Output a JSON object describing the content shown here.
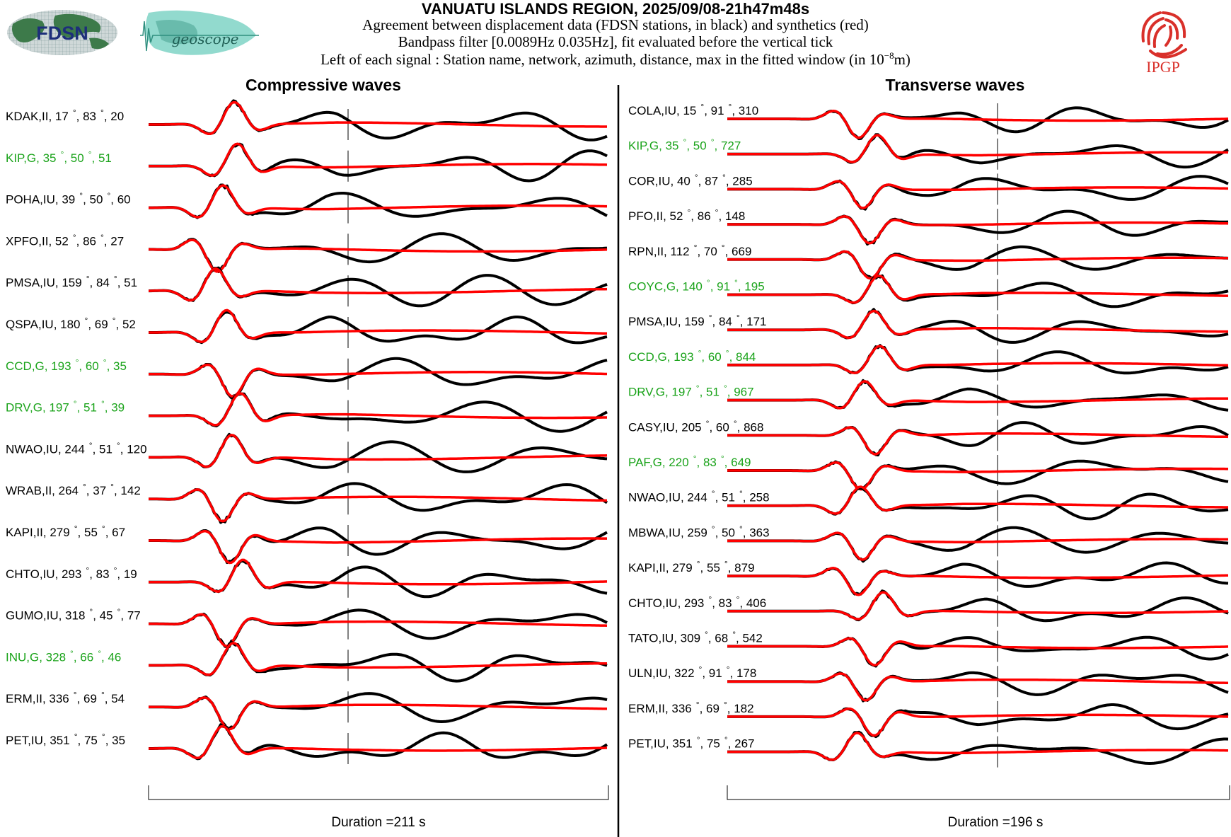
{
  "header": {
    "title": "VANUATU ISLANDS REGION, 2025/09/08-21h47m48s",
    "line1": "Agreement between displacement data (FDSN stations, in black) and synthetics (red)",
    "line2": "Bandpass filter [0.0089Hz 0.035Hz], fit evaluated before the vertical tick",
    "line3_prefix": "Left of each signal : Station name, network, azimuth, distance, max in the fitted window (in 10",
    "line3_exp": "−8",
    "line3_suffix": "m)"
  },
  "logos": {
    "fdsn": "FDSN",
    "geoscope": "geoscope",
    "ipgp": "IPGP"
  },
  "colors": {
    "data": "#000000",
    "synthetic": "#ff0000",
    "green_station": "#1aa31a",
    "ipgp": "#d9302a"
  },
  "chart_data": [
    {
      "type": "line",
      "title": "Compressive waves",
      "duration_label": "Duration =211 s",
      "series": [
        {
          "label": [
            "KDAK,II, 17",
            "°",
            ", 83",
            "°",
            ", 20"
          ],
          "green": false
        },
        {
          "label": [
            "KIP,G, 35",
            "°",
            ", 50",
            "°",
            ", 51"
          ],
          "green": true
        },
        {
          "label": [
            "POHA,IU, 39",
            "°",
            ", 50",
            "°",
            ", 60"
          ],
          "green": false
        },
        {
          "label": [
            "XPFO,II, 52",
            "°",
            ", 86",
            "°",
            ", 27"
          ],
          "green": false
        },
        {
          "label": [
            "PMSA,IU, 159",
            "°",
            ", 84",
            "°",
            ", 51"
          ],
          "green": false
        },
        {
          "label": [
            "QSPA,IU, 180",
            "°",
            ", 69",
            "°",
            ", 52"
          ],
          "green": false
        },
        {
          "label": [
            "CCD,G, 193",
            "°",
            ", 60",
            "°",
            ", 35"
          ],
          "green": true
        },
        {
          "label": [
            "DRV,G, 197",
            "°",
            ", 51",
            "°",
            ", 39"
          ],
          "green": true
        },
        {
          "label": [
            "NWAO,IU, 244",
            "°",
            ", 51",
            "°",
            ", 120"
          ],
          "green": false
        },
        {
          "label": [
            "WRAB,II, 264",
            "°",
            ", 37",
            "°",
            ", 142"
          ],
          "green": false
        },
        {
          "label": [
            "KAPI,II, 279",
            "°",
            ", 55",
            "°",
            ", 67"
          ],
          "green": false
        },
        {
          "label": [
            "CHTO,IU, 293",
            "°",
            ", 83",
            "°",
            ", 19"
          ],
          "green": false
        },
        {
          "label": [
            "GUMO,IU, 318",
            "°",
            ", 45",
            "°",
            ", 77"
          ],
          "green": false
        },
        {
          "label": [
            "INU,G, 328",
            "°",
            ", 66",
            "°",
            ", 46"
          ],
          "green": true
        },
        {
          "label": [
            "ERM,II, 336",
            "°",
            ", 69",
            "°",
            ", 54"
          ],
          "green": false
        },
        {
          "label": [
            "PET,IU, 351",
            "°",
            ", 75",
            "°",
            ", 35"
          ],
          "green": false
        }
      ]
    },
    {
      "type": "line",
      "title": "Transverse waves",
      "duration_label": "Duration =196 s",
      "series": [
        {
          "label": [
            "COLA,IU, 15",
            "°",
            ", 91",
            "°",
            ", 310"
          ],
          "green": false
        },
        {
          "label": [
            "KIP,G, 35",
            "°",
            ", 50",
            "°",
            ", 727"
          ],
          "green": true
        },
        {
          "label": [
            "COR,IU, 40",
            "°",
            ", 87",
            "°",
            ", 285"
          ],
          "green": false
        },
        {
          "label": [
            "PFO,II, 52",
            "°",
            ", 86",
            "°",
            ", 148"
          ],
          "green": false
        },
        {
          "label": [
            "RPN,II, 112",
            "°",
            ", 70",
            "°",
            ", 669"
          ],
          "green": false
        },
        {
          "label": [
            "COYC,G, 140",
            "°",
            ", 91",
            "°",
            ", 195"
          ],
          "green": true
        },
        {
          "label": [
            "PMSA,IU, 159",
            "°",
            ", 84",
            "°",
            ", 171"
          ],
          "green": false
        },
        {
          "label": [
            "CCD,G, 193",
            "°",
            ", 60",
            "°",
            ", 844"
          ],
          "green": true
        },
        {
          "label": [
            "DRV,G, 197",
            "°",
            ", 51",
            "°",
            ", 967"
          ],
          "green": true
        },
        {
          "label": [
            "CASY,IU, 205",
            "°",
            ", 60",
            "°",
            ", 868"
          ],
          "green": false
        },
        {
          "label": [
            "PAF,G, 220",
            "°",
            ", 83",
            "°",
            ", 649"
          ],
          "green": true
        },
        {
          "label": [
            "NWAO,IU, 244",
            "°",
            ", 51",
            "°",
            ", 258"
          ],
          "green": false
        },
        {
          "label": [
            "MBWA,IU, 259",
            "°",
            ", 50",
            "°",
            ", 363"
          ],
          "green": false
        },
        {
          "label": [
            "KAPI,II, 279",
            "°",
            ", 55",
            "°",
            ", 879"
          ],
          "green": false
        },
        {
          "label": [
            "CHTO,IU, 293",
            "°",
            ", 83",
            "°",
            ", 406"
          ],
          "green": false
        },
        {
          "label": [
            "TATO,IU, 309",
            "°",
            ", 68",
            "°",
            ", 542"
          ],
          "green": false
        },
        {
          "label": [
            "ULN,IU, 322",
            "°",
            ", 91",
            "°",
            ", 178"
          ],
          "green": false
        },
        {
          "label": [
            "ERM,II, 336",
            "°",
            ", 69",
            "°",
            ", 182"
          ],
          "green": false
        },
        {
          "label": [
            "PET,IU, 351",
            "°",
            ", 75",
            "°",
            ", 267"
          ],
          "green": false
        }
      ]
    }
  ]
}
